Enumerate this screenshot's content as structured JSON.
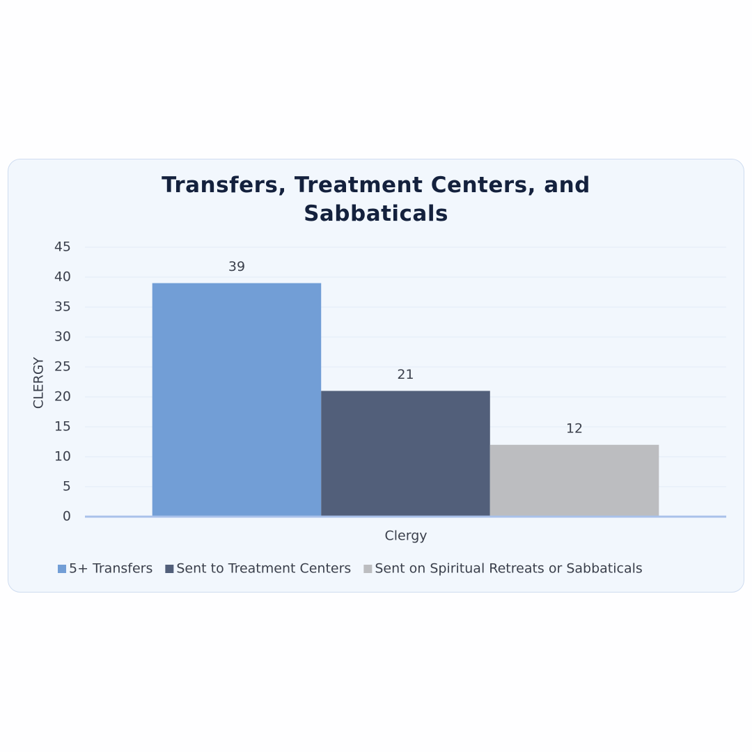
{
  "chart_data": {
    "type": "bar",
    "title": "Transfers, Treatment Centers, and Sabbaticals",
    "y_label": "CLERGY",
    "x_label": "Clergy",
    "categories": [
      "Clergy"
    ],
    "series": [
      {
        "name": "5+ Transfers",
        "color": "#729ed6",
        "values": [
          39
        ]
      },
      {
        "name": "Sent to Treatment Centers",
        "color": "#525f7a",
        "values": [
          21
        ]
      },
      {
        "name": "Sent on Spiritual Retreats or Sabbaticals",
        "color": "#bcbdc0",
        "values": [
          12
        ]
      }
    ],
    "ylim": [
      0,
      45
    ],
    "yticks": [
      0,
      5,
      10,
      15,
      20,
      25,
      30,
      35,
      40,
      45
    ],
    "grid": true
  }
}
